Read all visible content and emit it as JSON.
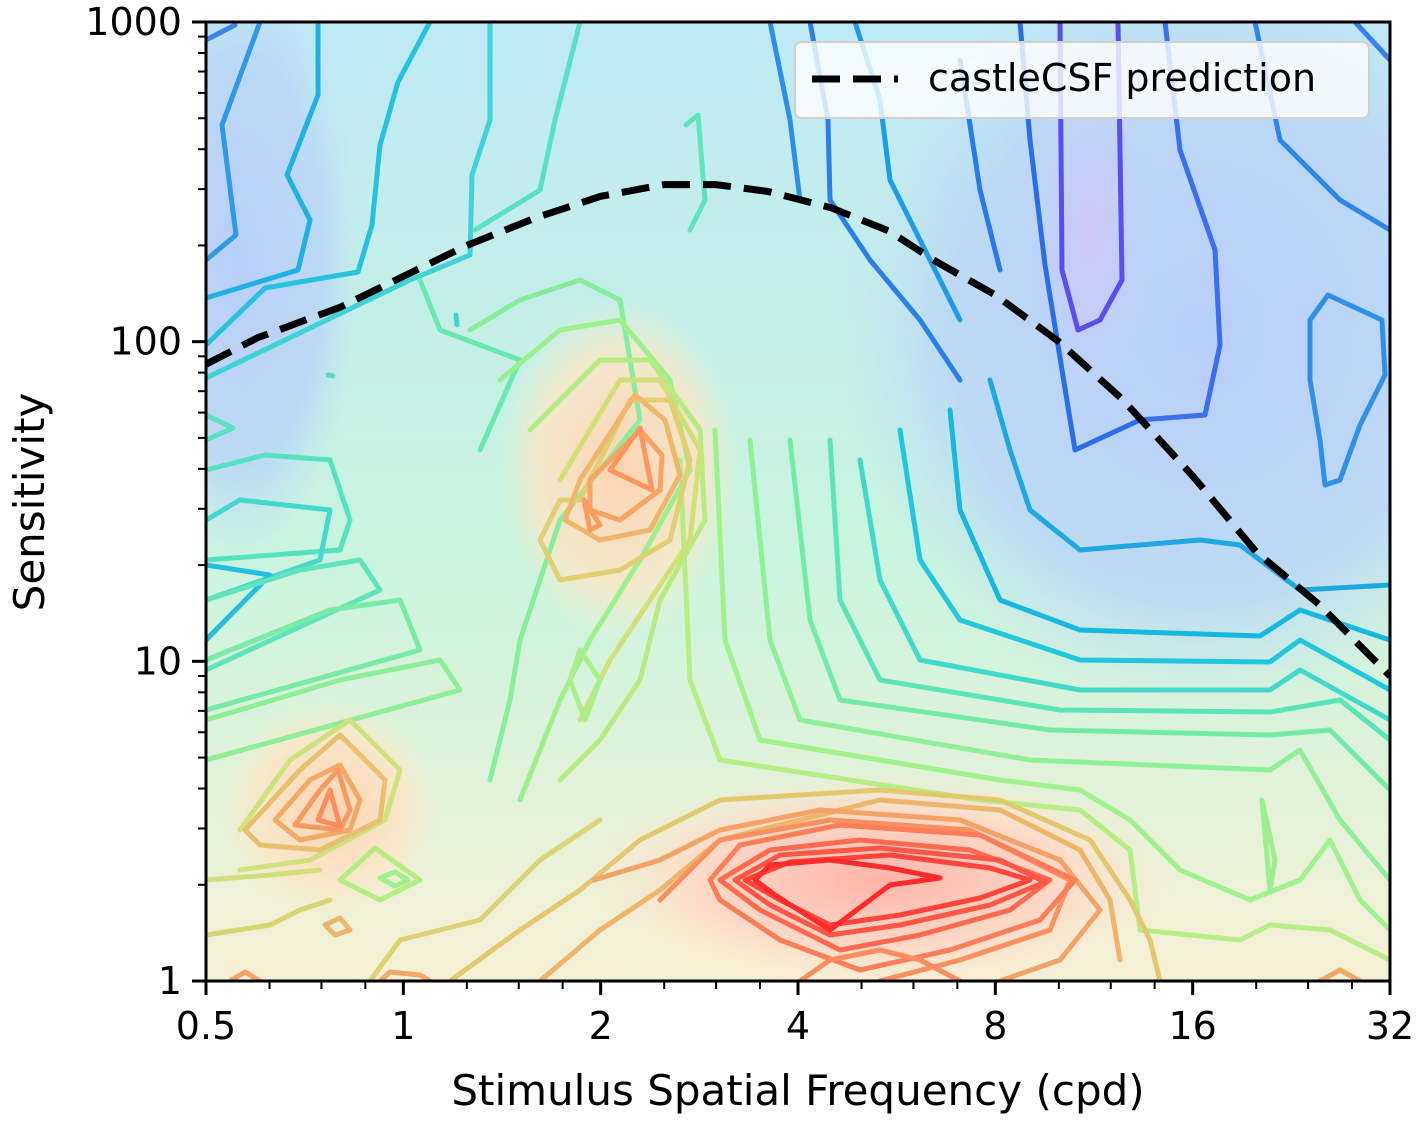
{
  "chart_data": {
    "type": "contour",
    "title": "",
    "xlabel": "Stimulus Spatial Frequency (cpd)",
    "ylabel": "Sensitivity",
    "x_scale": "log2",
    "y_scale": "log10",
    "xlim": [
      0.5,
      32
    ],
    "ylim": [
      1,
      1000
    ],
    "x_ticks": [
      0.5,
      1,
      2,
      4,
      8,
      16,
      32
    ],
    "x_tick_labels": [
      "0.5",
      "1",
      "2",
      "4",
      "8",
      "16",
      "32"
    ],
    "y_ticks": [
      1,
      10,
      100,
      1000
    ],
    "y_tick_labels": [
      "1",
      "10",
      "100",
      "1000"
    ],
    "grid": false,
    "colormap": "rainbow",
    "legend": {
      "position": "top-right",
      "entries": [
        "castleCSF prediction"
      ]
    },
    "series": [
      {
        "name": "castleCSF prediction",
        "style": "dashed",
        "color": "#000000",
        "x": [
          0.5,
          0.6,
          0.8,
          1.0,
          1.25,
          1.6,
          2.0,
          2.5,
          3.0,
          3.6,
          4.5,
          5.5,
          6.5,
          8.0,
          10.0,
          12.5,
          16.0,
          20.0,
          25.0,
          32.0
        ],
        "y": [
          85,
          103,
          128,
          160,
          200,
          245,
          285,
          310,
          310,
          295,
          262,
          222,
          178,
          140,
          100,
          66,
          38,
          22,
          15,
          9
        ]
      }
    ],
    "contour_peaks": [
      {
        "label": "high-density region (red)",
        "x": 4.8,
        "y": 2.1
      },
      {
        "label": "secondary peak (orange)",
        "x": 2.3,
        "y": 38
      },
      {
        "label": "secondary peak (orange)",
        "x": 0.75,
        "y": 3.5
      }
    ],
    "contour_colors": {
      "low": "#4b3df0",
      "mid": "#6ef2b4",
      "high": "#ff2a14"
    }
  }
}
